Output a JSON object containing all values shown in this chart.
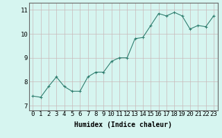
{
  "x": [
    0,
    1,
    2,
    3,
    4,
    5,
    6,
    7,
    8,
    9,
    10,
    11,
    12,
    13,
    14,
    15,
    16,
    17,
    18,
    19,
    20,
    21,
    22,
    23
  ],
  "y": [
    7.4,
    7.35,
    7.8,
    8.2,
    7.8,
    7.6,
    7.6,
    8.2,
    8.4,
    8.4,
    8.85,
    9.0,
    9.0,
    9.8,
    9.85,
    10.35,
    10.85,
    10.75,
    10.9,
    10.75,
    10.2,
    10.35,
    10.3,
    10.75
  ],
  "line_color": "#2e7d6e",
  "marker": "+",
  "marker_size": 3,
  "bg_color": "#d6f5f0",
  "grid_color": "#c8b8b8",
  "xlabel": "Humidex (Indice chaleur)",
  "xlabel_fontsize": 7,
  "tick_fontsize": 6.5,
  "ylim": [
    6.8,
    11.3
  ],
  "xlim": [
    -0.5,
    23.5
  ],
  "yticks": [
    7,
    8,
    9,
    10,
    11
  ],
  "xticks": [
    0,
    1,
    2,
    3,
    4,
    5,
    6,
    7,
    8,
    9,
    10,
    11,
    12,
    13,
    14,
    15,
    16,
    17,
    18,
    19,
    20,
    21,
    22,
    23
  ]
}
